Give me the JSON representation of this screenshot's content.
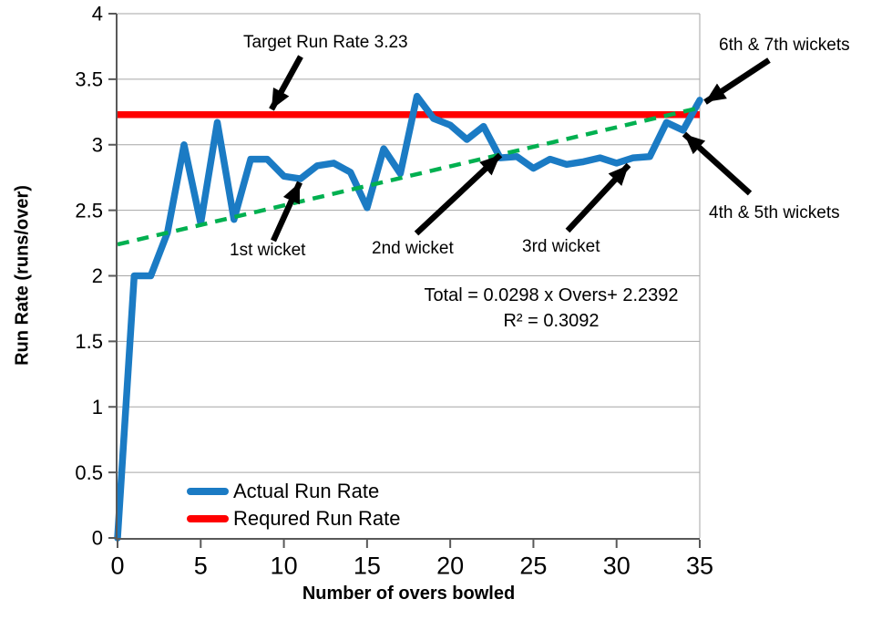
{
  "chart_data": {
    "type": "line",
    "title": "",
    "xlabel": "Number of overs bowled",
    "ylabel": "Run Rate (runs/over)",
    "xlim": [
      0,
      35
    ],
    "ylim": [
      0,
      4
    ],
    "x_ticks": [
      0,
      5,
      10,
      15,
      20,
      25,
      30,
      35
    ],
    "y_ticks": [
      0,
      0.5,
      1,
      1.5,
      2,
      2.5,
      3,
      3.5,
      4
    ],
    "grid": "horizontal",
    "legend_position": "bottom-left-inside",
    "x": [
      0,
      1,
      2,
      3,
      4,
      5,
      6,
      7,
      8,
      9,
      10,
      11,
      12,
      13,
      14,
      15,
      16,
      17,
      18,
      19,
      20,
      21,
      22,
      23,
      24,
      25,
      26,
      27,
      28,
      29,
      30,
      31,
      32,
      33,
      34,
      35
    ],
    "series": [
      {
        "name": "Actual Run Rate",
        "type": "line",
        "color": "#1B7BC4",
        "values": [
          0,
          2.0,
          2.0,
          2.33,
          3.0,
          2.4,
          3.17,
          2.43,
          2.89,
          2.89,
          2.76,
          2.74,
          2.84,
          2.86,
          2.79,
          2.52,
          2.97,
          2.78,
          3.37,
          3.2,
          3.15,
          3.04,
          3.14,
          2.9,
          2.91,
          2.82,
          2.89,
          2.85,
          2.87,
          2.9,
          2.86,
          2.9,
          2.91,
          3.17,
          3.11,
          3.34
        ]
      },
      {
        "name": "Required Run Rate",
        "type": "hline",
        "color": "#FF0000",
        "value": 3.23
      }
    ],
    "trendline": {
      "slope": 0.0298,
      "intercept": 2.2392,
      "color": "#00B050",
      "style": "dashed",
      "label": "Total  = 0.0298 x Overs+ 2.2392",
      "r2_label": "R² = 0.3092"
    }
  },
  "axis": {
    "x_title": "Number of overs bowled",
    "y_title": "Run Rate (runs/over)"
  },
  "legend": {
    "items": [
      {
        "label": "Actual Run Rate",
        "color": "#1B7BC4"
      },
      {
        "label": "Requred Run Rate",
        "color": "#FF0000"
      }
    ]
  },
  "annotations": {
    "target": {
      "text": "Target Run Rate 3.23"
    },
    "wicket1": {
      "text": "1st wicket"
    },
    "wicket2": {
      "text": "2nd wicket"
    },
    "wicket3": {
      "text": "3rd wicket"
    },
    "wickets45": {
      "text": "4th & 5th wickets"
    },
    "wickets67": {
      "text": "6th & 7th wickets"
    }
  }
}
